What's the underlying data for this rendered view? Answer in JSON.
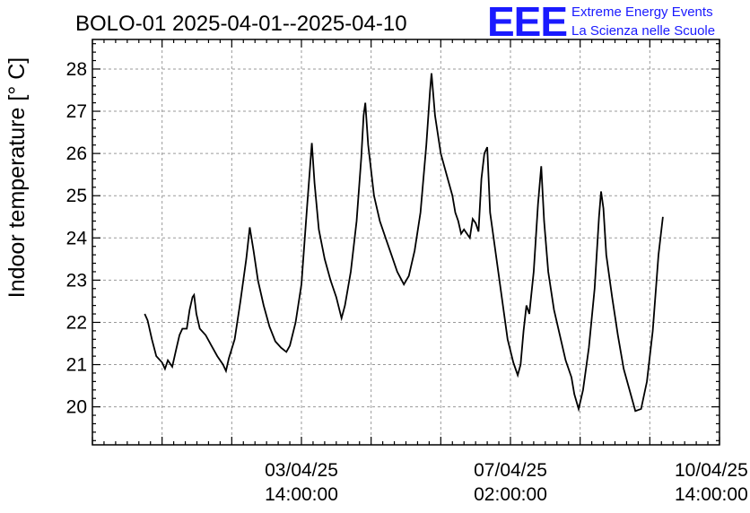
{
  "chart_data": {
    "type": "line",
    "title": "BOLO-01 2025-04-01--2025-04-10",
    "ylabel": "Indoor temperature [° C]",
    "xlabel": "",
    "ylim": [
      19.1,
      28.7
    ],
    "xlim_hours": [
      0,
      216
    ],
    "y_ticks": [
      20,
      21,
      22,
      23,
      24,
      25,
      26,
      27,
      28
    ],
    "y_tick_labels": [
      "20",
      "21",
      "22",
      "23",
      "24",
      "25",
      "26",
      "27",
      "28"
    ],
    "x_major_tick_hours": [
      0,
      24,
      48,
      72,
      96,
      120,
      144,
      168,
      192,
      216
    ],
    "x_labels": [
      {
        "hour": 72,
        "line1": "03/04/25",
        "line2": "14:00:00"
      },
      {
        "hour": 144,
        "line1": "07/04/25",
        "line2": "02:00:00"
      },
      {
        "hour": 216,
        "line1": "10/04/25",
        "line2": "14:00:00"
      }
    ],
    "grid": true,
    "series": [
      {
        "points": [
          [
            18,
            22.2
          ],
          [
            19,
            22.05
          ],
          [
            20.5,
            21.6
          ],
          [
            22,
            21.2
          ],
          [
            24,
            21.05
          ],
          [
            25,
            20.9
          ],
          [
            26,
            21.1
          ],
          [
            27.5,
            20.95
          ],
          [
            29,
            21.4
          ],
          [
            30,
            21.7
          ],
          [
            31,
            21.85
          ],
          [
            32.5,
            21.85
          ],
          [
            33.5,
            22.3
          ],
          [
            34.5,
            22.6
          ],
          [
            35,
            22.65
          ],
          [
            35.8,
            22.2
          ],
          [
            37,
            21.85
          ],
          [
            39,
            21.7
          ],
          [
            41,
            21.45
          ],
          [
            43,
            21.2
          ],
          [
            45,
            21.0
          ],
          [
            46,
            20.85
          ],
          [
            47,
            21.15
          ],
          [
            49,
            21.6
          ],
          [
            51,
            22.5
          ],
          [
            53,
            23.5
          ],
          [
            54.2,
            24.25
          ],
          [
            55.5,
            23.7
          ],
          [
            57,
            23.0
          ],
          [
            59,
            22.4
          ],
          [
            61,
            21.9
          ],
          [
            63,
            21.55
          ],
          [
            65,
            21.4
          ],
          [
            66.8,
            21.3
          ],
          [
            68,
            21.45
          ],
          [
            70,
            22.0
          ],
          [
            72,
            22.9
          ],
          [
            74,
            24.8
          ],
          [
            75,
            25.7
          ],
          [
            75.6,
            26.25
          ],
          [
            76.5,
            25.3
          ],
          [
            78,
            24.2
          ],
          [
            80,
            23.5
          ],
          [
            82,
            23.0
          ],
          [
            84,
            22.6
          ],
          [
            85.8,
            22.1
          ],
          [
            87,
            22.4
          ],
          [
            89,
            23.2
          ],
          [
            91,
            24.4
          ],
          [
            92.6,
            25.9
          ],
          [
            93.4,
            26.9
          ],
          [
            94,
            27.2
          ],
          [
            95,
            26.2
          ],
          [
            97,
            25.0
          ],
          [
            99,
            24.4
          ],
          [
            101,
            24.0
          ],
          [
            103,
            23.6
          ],
          [
            105,
            23.2
          ],
          [
            107.3,
            22.9
          ],
          [
            109,
            23.1
          ],
          [
            111,
            23.7
          ],
          [
            113,
            24.6
          ],
          [
            115,
            26.2
          ],
          [
            116.3,
            27.5
          ],
          [
            116.8,
            27.9
          ],
          [
            118,
            26.9
          ],
          [
            120,
            26.0
          ],
          [
            122,
            25.5
          ],
          [
            124,
            25.0
          ],
          [
            125,
            24.6
          ],
          [
            126,
            24.4
          ],
          [
            127,
            24.1
          ],
          [
            128,
            24.2
          ],
          [
            130,
            24.0
          ],
          [
            131,
            24.45
          ],
          [
            132,
            24.35
          ],
          [
            133,
            24.15
          ],
          [
            134,
            25.4
          ],
          [
            135,
            26.0
          ],
          [
            136,
            26.15
          ],
          [
            137,
            24.6
          ],
          [
            139,
            23.6
          ],
          [
            141,
            22.6
          ],
          [
            143,
            21.6
          ],
          [
            145,
            21.05
          ],
          [
            146.5,
            20.75
          ],
          [
            147.5,
            21.0
          ],
          [
            148.5,
            21.8
          ],
          [
            149.5,
            22.4
          ],
          [
            150.5,
            22.2
          ],
          [
            152,
            23.2
          ],
          [
            153.5,
            24.8
          ],
          [
            154.6,
            25.7
          ],
          [
            155.6,
            24.4
          ],
          [
            157,
            23.2
          ],
          [
            159,
            22.3
          ],
          [
            161,
            21.7
          ],
          [
            163,
            21.1
          ],
          [
            165,
            20.7
          ],
          [
            166,
            20.3
          ],
          [
            167.5,
            19.95
          ],
          [
            169,
            20.4
          ],
          [
            171,
            21.4
          ],
          [
            173,
            22.8
          ],
          [
            174.5,
            24.5
          ],
          [
            175.2,
            25.1
          ],
          [
            176,
            24.7
          ],
          [
            177,
            23.6
          ],
          [
            179,
            22.6
          ],
          [
            181,
            21.7
          ],
          [
            183,
            20.9
          ],
          [
            185,
            20.4
          ],
          [
            187,
            19.9
          ],
          [
            189,
            19.95
          ],
          [
            191,
            20.6
          ],
          [
            193,
            21.8
          ],
          [
            195,
            23.6
          ],
          [
            196.5,
            24.5
          ]
        ]
      }
    ]
  },
  "logo": {
    "mark": "EEE",
    "line1": "Extreme Energy Events",
    "line2": "La Scienza nelle Scuole",
    "color": "#1a1aff"
  }
}
